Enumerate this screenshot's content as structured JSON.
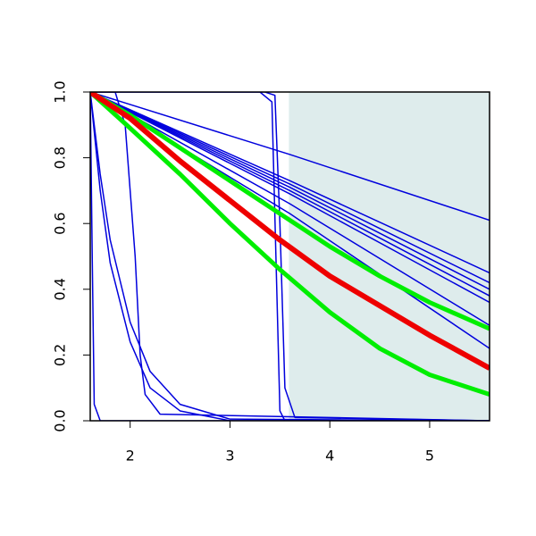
{
  "chart_data": {
    "type": "line",
    "xlim": [
      1.6,
      5.6
    ],
    "ylim": [
      0,
      1
    ],
    "xticks": [
      2,
      3,
      4,
      5
    ],
    "yticks": [
      {
        "value": 0,
        "label": "0.0"
      },
      0.2,
      0.4,
      0.6,
      0.8,
      {
        "value": 1,
        "label": "1.0"
      }
    ],
    "shaded_region": {
      "x": [
        3.59,
        5.6
      ],
      "color": "#deecec"
    },
    "series": [
      {
        "color": "#0000dd",
        "line_width": 1.5,
        "x": [
          1.6,
          3.6,
          5.6
        ],
        "values": [
          1,
          0.81,
          0.61
        ]
      },
      {
        "color": "#0000dd",
        "line_width": 1.5,
        "x": [
          1.6,
          3.6,
          5.6
        ],
        "values": [
          1,
          0.73,
          0.45
        ]
      },
      {
        "color": "#0000dd",
        "line_width": 1.5,
        "x": [
          1.6,
          3.6,
          5.6
        ],
        "values": [
          1,
          0.72,
          0.42
        ]
      },
      {
        "color": "#0000dd",
        "line_width": 1.5,
        "x": [
          1.6,
          3.6,
          5.6
        ],
        "values": [
          1,
          0.71,
          0.4
        ]
      },
      {
        "color": "#0000dd",
        "line_width": 1.5,
        "x": [
          1.6,
          3.6,
          5.6
        ],
        "values": [
          1,
          0.7,
          0.38
        ]
      },
      {
        "color": "#0000dd",
        "line_width": 1.5,
        "x": [
          1.6,
          3.6,
          5.6
        ],
        "values": [
          1,
          0.69,
          0.36
        ]
      },
      {
        "color": "#0000dd",
        "line_width": 1.5,
        "x": [
          1.6,
          3.6,
          5.6
        ],
        "values": [
          1,
          0.66,
          0.29
        ]
      },
      {
        "color": "#0000dd",
        "line_width": 1.5,
        "x": [
          1.6,
          3.6,
          5.6
        ],
        "values": [
          1,
          0.63,
          0.22
        ]
      },
      {
        "color": "#0000dd",
        "line_width": 1.5,
        "x": [
          1.6,
          1.62,
          1.64,
          1.7,
          5.6
        ],
        "values": [
          1,
          0.5,
          0.05,
          0,
          0
        ]
      },
      {
        "color": "#0000dd",
        "line_width": 1.5,
        "x": [
          1.6,
          1.7,
          1.8,
          2.0,
          2.2,
          2.5,
          3.0,
          5.6
        ],
        "values": [
          1,
          0.7,
          0.48,
          0.24,
          0.1,
          0.03,
          0,
          0
        ]
      },
      {
        "color": "#0000dd",
        "line_width": 1.5,
        "x": [
          1.6,
          1.7,
          1.8,
          2.0,
          2.2,
          2.5,
          3.0,
          5.6
        ],
        "values": [
          1,
          0.75,
          0.55,
          0.3,
          0.15,
          0.05,
          0.005,
          0
        ]
      },
      {
        "color": "#0000dd",
        "line_width": 1.5,
        "x": [
          1.6,
          1.85,
          1.95,
          2.05,
          2.1,
          2.15,
          2.3,
          5.6
        ],
        "values": [
          1,
          1,
          0.9,
          0.5,
          0.2,
          0.08,
          0.02,
          0
        ]
      },
      {
        "color": "#0000dd",
        "line_width": 1.5,
        "x": [
          1.6,
          3.3,
          3.42,
          3.46,
          3.5,
          3.55,
          5.6
        ],
        "values": [
          1,
          1,
          0.97,
          0.5,
          0.03,
          0,
          0
        ]
      },
      {
        "color": "#0000dd",
        "line_width": 1.5,
        "x": [
          1.6,
          3.35,
          3.45,
          3.5,
          3.55,
          3.65,
          5.6
        ],
        "values": [
          1,
          1,
          0.99,
          0.6,
          0.1,
          0.01,
          0
        ]
      },
      {
        "color": "#00ee00",
        "line_width": 5,
        "x": [
          1.6,
          2,
          2.5,
          3,
          3.5,
          4,
          4.5,
          5,
          5.6
        ],
        "values": [
          1,
          0.93,
          0.83,
          0.73,
          0.63,
          0.53,
          0.44,
          0.36,
          0.28
        ]
      },
      {
        "color": "#00ee00",
        "line_width": 5,
        "x": [
          1.6,
          2,
          2.5,
          3,
          3.5,
          4,
          4.5,
          5,
          5.6
        ],
        "values": [
          1,
          0.89,
          0.75,
          0.6,
          0.46,
          0.33,
          0.22,
          0.14,
          0.08
        ]
      },
      {
        "color": "#ee0000",
        "line_width": 6,
        "x": [
          1.6,
          2,
          2.5,
          3,
          3.5,
          4,
          4.5,
          5,
          5.6
        ],
        "values": [
          1,
          0.92,
          0.79,
          0.67,
          0.55,
          0.44,
          0.35,
          0.26,
          0.16
        ]
      }
    ]
  }
}
